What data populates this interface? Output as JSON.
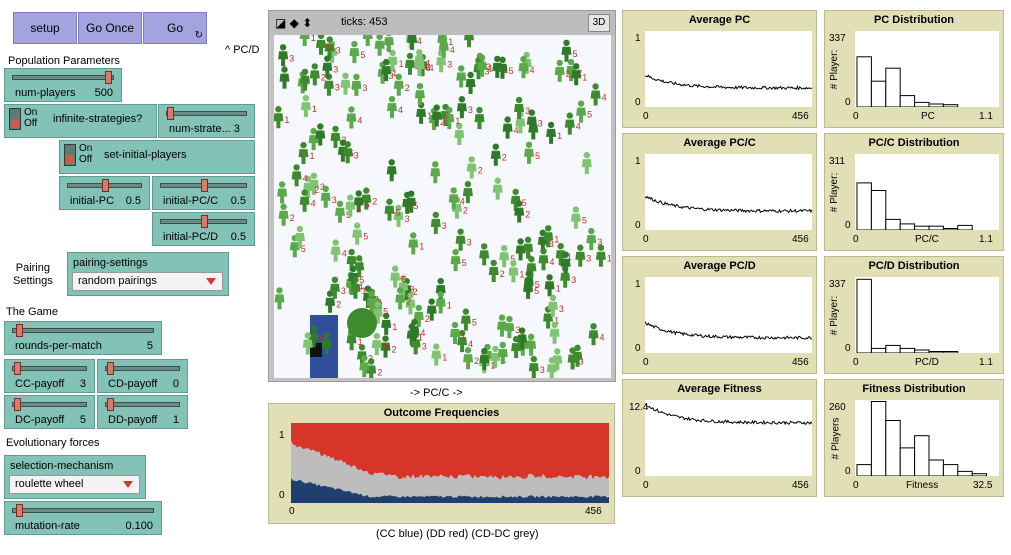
{
  "buttons": {
    "setup": "setup",
    "go_once": "Go Once",
    "go": "Go"
  },
  "view": {
    "ticks_label": "ticks: 453",
    "btn_3d": "3D",
    "y_axis_label": "^ PC/D",
    "x_axis_label": "-> PC/C ->"
  },
  "sections": {
    "population": "Population Parameters",
    "pairing": "Pairing\nSettings",
    "game": "The Game",
    "evolution": "Evolutionary forces"
  },
  "sliders": {
    "num_players": {
      "name": "num-players",
      "value": "500",
      "fraction": 0.97
    },
    "num_strategies": {
      "name": "num-strate... 3",
      "value": "",
      "fraction": 0.0
    },
    "initial_pc": {
      "name": "initial-PC",
      "value": "0.5",
      "fraction": 0.5
    },
    "initial_pcc": {
      "name": "initial-PC/C",
      "value": "0.5",
      "fraction": 0.5
    },
    "initial_pcd": {
      "name": "initial-PC/D",
      "value": "0.5",
      "fraction": 0.5
    },
    "rounds": {
      "name": "rounds-per-match",
      "value": "5",
      "fraction": 0.02
    },
    "cc": {
      "name": "CC-payoff",
      "value": "3",
      "fraction": 0.02
    },
    "cd": {
      "name": "CD-payoff",
      "value": "0",
      "fraction": 0.02
    },
    "dc": {
      "name": "DC-payoff",
      "value": "5",
      "fraction": 0.02
    },
    "dd": {
      "name": "DD-payoff",
      "value": "1",
      "fraction": 0.02
    },
    "mutation": {
      "name": "mutation-rate",
      "value": "0.100",
      "fraction": 0.02
    }
  },
  "switches": {
    "infinite": {
      "on": "On",
      "off": "Off",
      "name": "infinite-strategies?"
    },
    "set_initial": {
      "on": "On",
      "off": "Off",
      "name": "set-initial-players"
    }
  },
  "choosers": {
    "pairing": {
      "name": "pairing-settings",
      "value": "random pairings"
    },
    "selection": {
      "name": "selection-mechanism",
      "value": "roulette wheel"
    }
  },
  "outcome_plot": {
    "title": "Outcome Frequencies",
    "y_max": "1",
    "y_min": "0",
    "x_min": "0",
    "x_max": "456",
    "caption": "(CC blue) (DD red) (CD-DC grey)",
    "colors": {
      "cc": "#1f3f6e",
      "cd_dc": "#bdbdbd",
      "dd": "#d7342a"
    }
  },
  "plots": {
    "avg_pc": {
      "title": "Average PC",
      "y_max": "1",
      "y_min": "0",
      "x_min": "0",
      "x_max": "456"
    },
    "avg_pcc": {
      "title": "Average PC/C",
      "y_max": "1",
      "y_min": "0",
      "x_min": "0",
      "x_max": "456"
    },
    "avg_pcd": {
      "title": "Average PC/D",
      "y_max": "1",
      "y_min": "0",
      "x_min": "0",
      "x_max": "456"
    },
    "avg_fit": {
      "title": "Average Fitness",
      "y_max": "12.4",
      "y_min": "0",
      "x_min": "0",
      "x_max": "456"
    },
    "dist_pc": {
      "title": "PC Distribution",
      "y_max": "337",
      "y_min": "0",
      "x_min": "0",
      "x_max": "1.1",
      "xlabel": "PC",
      "ylabel": "# Player:",
      "bars": [
        0.66,
        0.34,
        0.51,
        0.15,
        0.06,
        0.04,
        0.03
      ]
    },
    "dist_pcc": {
      "title": "PC/C Distribution",
      "y_max": "311",
      "y_min": "0",
      "x_min": "0",
      "x_max": "1.1",
      "xlabel": "PC/C",
      "ylabel": "# Player:",
      "bars": [
        0.62,
        0.52,
        0.14,
        0.08,
        0.05,
        0.05,
        0.02,
        0.06
      ]
    },
    "dist_pcd": {
      "title": "PC/D Distribution",
      "y_max": "337",
      "y_min": "0",
      "x_min": "0",
      "x_max": "1.1",
      "xlabel": "PC/D",
      "ylabel": "# Player:",
      "bars": [
        0.97,
        0.06,
        0.1,
        0.06,
        0.04,
        0.02,
        0.02
      ]
    },
    "dist_fit": {
      "title": "Fitness Distribution",
      "y_max": "260",
      "y_min": "0",
      "x_min": "0",
      "x_max": "32.5",
      "xlabel": "Fitness",
      "ylabel": "# Players",
      "bars": [
        0.15,
        0.98,
        0.73,
        0.37,
        0.53,
        0.21,
        0.15,
        0.06,
        0.03
      ]
    }
  },
  "agent_colors": [
    "#3e8a2e",
    "#5aa94a",
    "#2f7a28",
    "#7fc471"
  ]
}
